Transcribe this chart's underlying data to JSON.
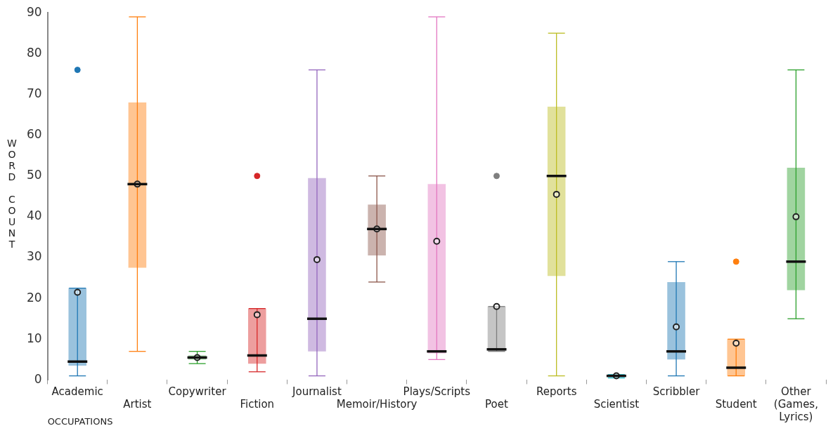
{
  "chart_data": {
    "type": "box",
    "xlabel": "OCCUPATIONS",
    "ylabel": "WORD COUNT",
    "categories": [
      "Academic",
      "Artist",
      "Copywriter",
      "Fiction",
      "Journalist",
      "Memoir/History",
      "Plays/Scripts",
      "Poet",
      "Reports",
      "Scientist",
      "Scribbler",
      "Student",
      "Other (Games, Lyrics)"
    ],
    "colors": [
      "#1f77b4",
      "#ff7f0e",
      "#2ca02c",
      "#d62728",
      "#9467bd",
      "#8c564b",
      "#e377c2",
      "#7f7f7f",
      "#bcbd22",
      "#17becf",
      "#1f77b4",
      "#ff7f0e",
      "#2ca02c"
    ],
    "boxes": [
      {
        "low": 1,
        "q1": 3.5,
        "median": 4.5,
        "q3": 22.5,
        "high": 22.5,
        "mean": 21.5,
        "outliers": [
          76
        ]
      },
      {
        "low": 7,
        "q1": 27.5,
        "median": 48,
        "q3": 68,
        "high": 89,
        "mean": 48
      },
      {
        "low": 4,
        "q1": 5,
        "median": 5.5,
        "q3": 6,
        "high": 7,
        "mean": 5.5
      },
      {
        "low": 2,
        "q1": 4,
        "median": 6,
        "q3": 17.5,
        "high": 17.5,
        "mean": 16,
        "outliers": [
          50
        ]
      },
      {
        "low": 1,
        "q1": 7,
        "median": 15,
        "q3": 49.5,
        "high": 76,
        "mean": 29.5
      },
      {
        "low": 24,
        "q1": 30.5,
        "median": 37,
        "q3": 43,
        "high": 50,
        "mean": 37
      },
      {
        "low": 5,
        "q1": 6.5,
        "median": 7,
        "q3": 48,
        "high": 89,
        "mean": 34
      },
      {
        "low": 7,
        "q1": 7,
        "median": 7.5,
        "q3": 18,
        "high": 18,
        "mean": 18,
        "outliers": [
          50
        ]
      },
      {
        "low": 1,
        "q1": 25.5,
        "median": 50,
        "q3": 67,
        "high": 85,
        "mean": 45.5
      },
      {
        "low": 0.5,
        "q1": 0.7,
        "median": 1,
        "q3": 1.2,
        "high": 1.3,
        "mean": 1
      },
      {
        "low": 1,
        "q1": 5,
        "median": 7,
        "q3": 24,
        "high": 29,
        "mean": 13
      },
      {
        "low": 1,
        "q1": 1,
        "median": 3,
        "q3": 10,
        "high": 10,
        "mean": 9,
        "outliers": [
          29
        ]
      },
      {
        "low": 15,
        "q1": 22,
        "median": 29,
        "q3": 52,
        "high": 76,
        "mean": 40
      }
    ],
    "ylim": [
      0,
      90
    ],
    "yticks": [
      0,
      10,
      20,
      30,
      40,
      50,
      60,
      70,
      80,
      90
    ],
    "grid": false,
    "legend": false
  }
}
